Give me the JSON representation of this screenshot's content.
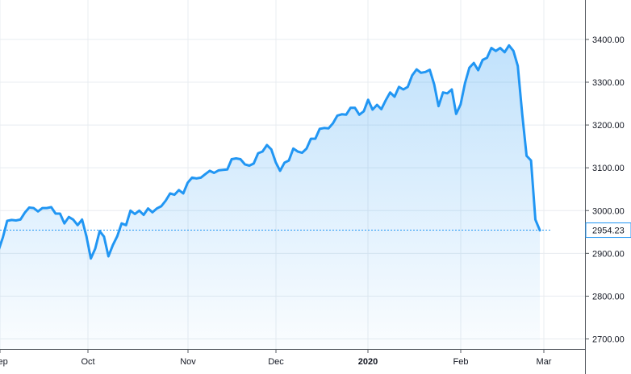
{
  "chart_data": {
    "type": "area",
    "title": "",
    "xlabel": "",
    "ylabel": "",
    "ylim": [
      2670,
      3500
    ],
    "grid": true,
    "y_ticks": [
      "2700.00",
      "2800.00",
      "2900.00",
      "3000.00",
      "3100.00",
      "3200.00",
      "3300.00",
      "3400.00"
    ],
    "x_ticks": [
      {
        "label": "Sep",
        "bold": false
      },
      {
        "label": "Oct",
        "bold": false
      },
      {
        "label": "Nov",
        "bold": false
      },
      {
        "label": "Dec",
        "bold": false
      },
      {
        "label": "2020",
        "bold": true
      },
      {
        "label": "Feb",
        "bold": false
      },
      {
        "label": "Mar",
        "bold": false
      }
    ],
    "last_value": 2954.23,
    "last_value_label": "2954.23",
    "line_color": "#2196f3",
    "fill_color": "#2196f3",
    "price_label_color": "#2196f3",
    "series": [
      {
        "values": [
          2906,
          2937,
          2976,
          2978,
          2977,
          2979,
          2995,
          3007,
          3006,
          2998,
          3006,
          3006,
          3008,
          2993,
          2993,
          2970,
          2985,
          2979,
          2966,
          2979,
          2940,
          2888,
          2911,
          2952,
          2939,
          2893,
          2919,
          2940,
          2970,
          2966,
          3000,
          2992,
          3000,
          2990,
          3005,
          2996,
          3005,
          3010,
          3023,
          3040,
          3037,
          3048,
          3040,
          3065,
          3077,
          3075,
          3077,
          3085,
          3093,
          3088,
          3094,
          3095,
          3096,
          3120,
          3122,
          3120,
          3108,
          3105,
          3110,
          3134,
          3138,
          3153,
          3143,
          3113,
          3093,
          3112,
          3117,
          3145,
          3138,
          3135,
          3145,
          3168,
          3168,
          3191,
          3193,
          3192,
          3204,
          3222,
          3225,
          3224,
          3240,
          3240,
          3224,
          3232,
          3259,
          3236,
          3247,
          3237,
          3258,
          3276,
          3266,
          3289,
          3283,
          3289,
          3316,
          3330,
          3322,
          3324,
          3329,
          3295,
          3244,
          3276,
          3274,
          3283,
          3226,
          3248,
          3298,
          3334,
          3345,
          3328,
          3352,
          3357,
          3380,
          3373,
          3380,
          3370,
          3386,
          3373,
          3338,
          3225,
          3128,
          3117,
          2979,
          2954
        ]
      }
    ]
  }
}
